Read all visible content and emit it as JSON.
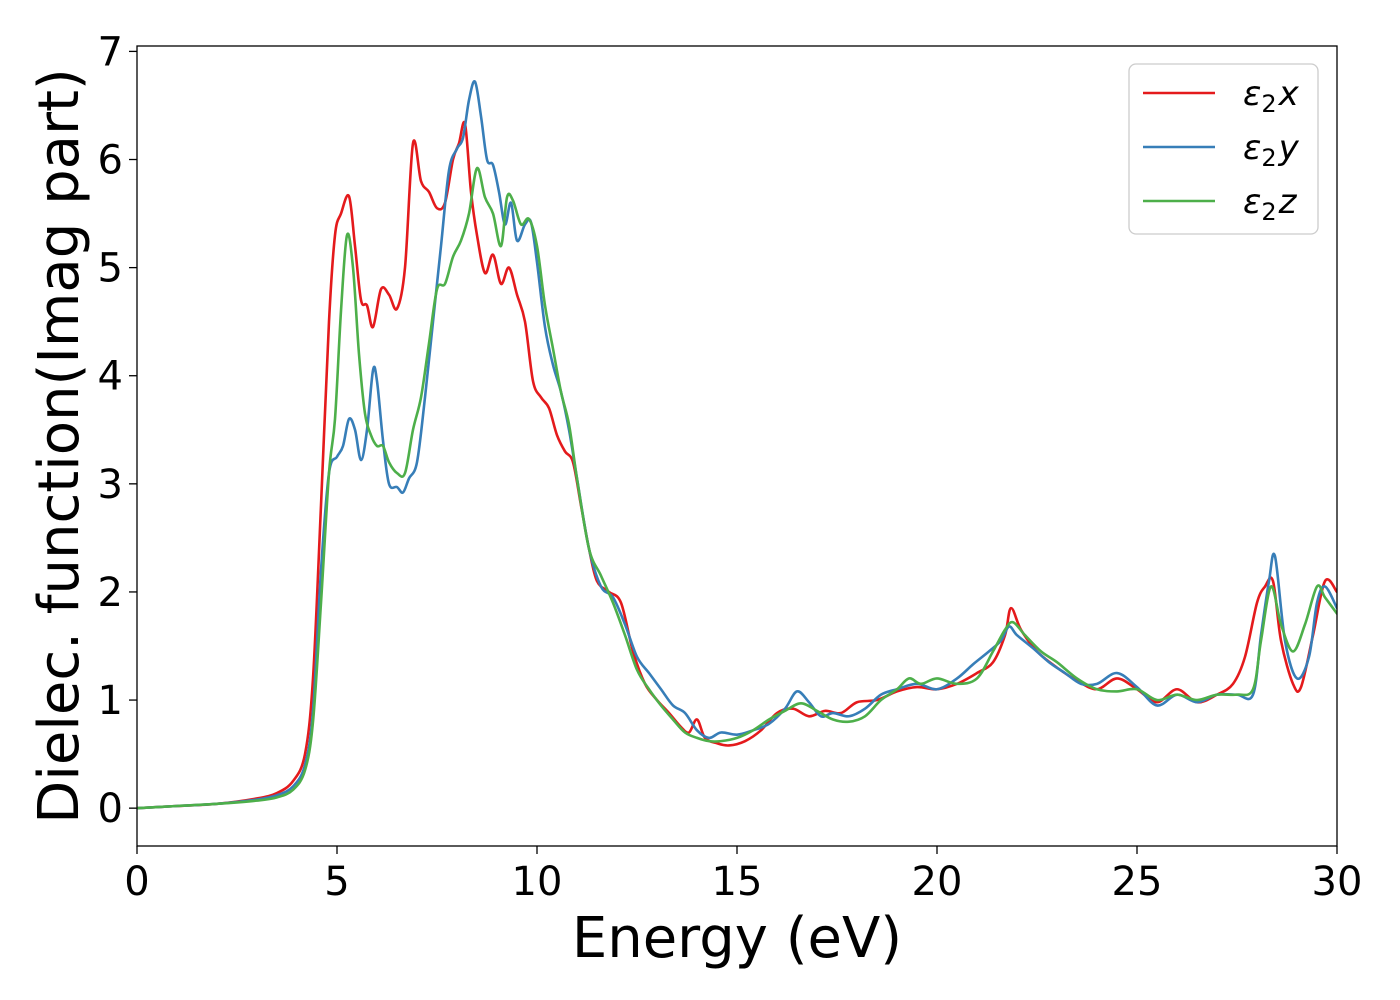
{
  "chart_data": {
    "type": "line",
    "title": "",
    "xlabel": "Energy (eV)",
    "ylabel": "Dielec. function(Imag part)",
    "xlim": [
      0,
      30
    ],
    "ylim": [
      -0.35,
      7.05
    ],
    "xticks": [
      0,
      5,
      10,
      15,
      20,
      25,
      30
    ],
    "yticks": [
      0,
      1,
      2,
      3,
      4,
      5,
      6,
      7
    ],
    "grid": false,
    "legend_position": "top-right",
    "series": [
      {
        "name": "ε2x",
        "legend_base": "ε",
        "legend_sub": "2",
        "legend_suffix": "x",
        "color": "#e41a1c",
        "x": [
          0,
          1,
          2,
          3,
          3.5,
          3.9,
          4.2,
          4.4,
          4.6,
          4.8,
          4.95,
          5.1,
          5.3,
          5.45,
          5.6,
          5.75,
          5.9,
          6.1,
          6.3,
          6.5,
          6.7,
          6.9,
          7.1,
          7.3,
          7.5,
          7.7,
          7.9,
          8.05,
          8.2,
          8.35,
          8.5,
          8.7,
          8.9,
          9.1,
          9.3,
          9.5,
          9.7,
          9.9,
          10.1,
          10.3,
          10.5,
          10.7,
          10.9,
          11.1,
          11.3,
          11.5,
          11.8,
          12.1,
          12.4,
          12.7,
          13.0,
          13.3,
          13.6,
          13.8,
          14.0,
          14.2,
          14.5,
          14.8,
          15.2,
          15.6,
          16.0,
          16.4,
          16.8,
          17.2,
          17.6,
          18.0,
          18.5,
          19.0,
          19.5,
          20.0,
          20.5,
          21.0,
          21.4,
          21.7,
          21.85,
          22.1,
          22.5,
          23.0,
          23.5,
          24.0,
          24.5,
          25.0,
          25.5,
          26.0,
          26.5,
          27.0,
          27.4,
          27.7,
          28.0,
          28.2,
          28.4,
          28.6,
          28.9,
          29.1,
          29.4,
          29.7,
          30.0
        ],
        "y": [
          0,
          0.02,
          0.04,
          0.09,
          0.14,
          0.25,
          0.5,
          1.2,
          2.8,
          4.5,
          5.3,
          5.5,
          5.66,
          5.2,
          4.7,
          4.65,
          4.45,
          4.8,
          4.75,
          4.62,
          5.0,
          6.15,
          5.8,
          5.7,
          5.55,
          5.6,
          6.0,
          6.15,
          6.33,
          5.7,
          5.3,
          4.95,
          5.12,
          4.85,
          5.0,
          4.75,
          4.5,
          3.95,
          3.8,
          3.7,
          3.45,
          3.3,
          3.2,
          2.8,
          2.4,
          2.1,
          2.0,
          1.9,
          1.45,
          1.15,
          1.0,
          0.88,
          0.75,
          0.7,
          0.82,
          0.65,
          0.6,
          0.58,
          0.62,
          0.72,
          0.88,
          0.92,
          0.85,
          0.9,
          0.88,
          0.98,
          1.0,
          1.08,
          1.12,
          1.1,
          1.15,
          1.25,
          1.35,
          1.6,
          1.85,
          1.65,
          1.45,
          1.3,
          1.18,
          1.1,
          1.2,
          1.1,
          0.98,
          1.1,
          0.98,
          1.05,
          1.15,
          1.4,
          1.9,
          2.05,
          2.1,
          1.55,
          1.15,
          1.12,
          1.6,
          2.1,
          2.0
        ]
      },
      {
        "name": "ε2y",
        "legend_base": "ε",
        "legend_sub": "2",
        "legend_suffix": "y",
        "color": "#377eb8",
        "x": [
          0,
          1,
          2,
          3,
          3.5,
          3.9,
          4.2,
          4.4,
          4.6,
          4.8,
          5.0,
          5.15,
          5.3,
          5.45,
          5.6,
          5.75,
          5.9,
          6.0,
          6.15,
          6.3,
          6.5,
          6.65,
          6.8,
          7.0,
          7.2,
          7.4,
          7.6,
          7.8,
          8.0,
          8.15,
          8.3,
          8.45,
          8.6,
          8.75,
          8.9,
          9.05,
          9.2,
          9.35,
          9.5,
          9.7,
          9.85,
          10.0,
          10.2,
          10.4,
          10.6,
          10.8,
          11.0,
          11.3,
          11.6,
          11.9,
          12.2,
          12.5,
          12.8,
          13.1,
          13.4,
          13.7,
          14.0,
          14.3,
          14.6,
          15.0,
          15.4,
          15.8,
          16.2,
          16.5,
          16.8,
          17.1,
          17.4,
          17.8,
          18.2,
          18.6,
          19.0,
          19.5,
          20.0,
          20.5,
          20.9,
          21.3,
          21.6,
          21.8,
          22.0,
          22.4,
          22.8,
          23.2,
          23.6,
          24.0,
          24.5,
          25.0,
          25.5,
          26.0,
          26.5,
          27.0,
          27.5,
          27.9,
          28.1,
          28.3,
          28.45,
          28.7,
          29.0,
          29.3,
          29.5,
          29.7,
          30.0
        ],
        "y": [
          0,
          0.02,
          0.04,
          0.08,
          0.12,
          0.2,
          0.4,
          0.9,
          2.2,
          3.1,
          3.25,
          3.35,
          3.6,
          3.5,
          3.22,
          3.5,
          4.05,
          3.95,
          3.4,
          3.0,
          2.97,
          2.92,
          3.05,
          3.2,
          3.8,
          4.5,
          5.2,
          5.9,
          6.1,
          6.2,
          6.55,
          6.72,
          6.4,
          6.0,
          5.95,
          5.7,
          5.4,
          5.6,
          5.25,
          5.4,
          5.42,
          5.05,
          4.45,
          4.1,
          3.85,
          3.5,
          3.05,
          2.4,
          2.05,
          1.95,
          1.7,
          1.4,
          1.25,
          1.1,
          0.95,
          0.88,
          0.72,
          0.65,
          0.7,
          0.68,
          0.72,
          0.78,
          0.92,
          1.08,
          0.98,
          0.85,
          0.88,
          0.85,
          0.92,
          1.05,
          1.1,
          1.15,
          1.1,
          1.2,
          1.33,
          1.45,
          1.55,
          1.68,
          1.6,
          1.48,
          1.35,
          1.25,
          1.15,
          1.15,
          1.25,
          1.12,
          0.95,
          1.05,
          0.98,
          1.05,
          1.05,
          1.05,
          1.6,
          2.1,
          2.33,
          1.55,
          1.2,
          1.4,
          1.9,
          2.05,
          1.85
        ]
      },
      {
        "name": "ε2z",
        "legend_base": "ε",
        "legend_sub": "2",
        "legend_suffix": "z",
        "color": "#4daf4a",
        "x": [
          0,
          1,
          2,
          3,
          3.5,
          3.9,
          4.2,
          4.4,
          4.6,
          4.8,
          4.95,
          5.1,
          5.25,
          5.4,
          5.55,
          5.7,
          5.85,
          6.0,
          6.15,
          6.3,
          6.5,
          6.7,
          6.9,
          7.1,
          7.3,
          7.5,
          7.7,
          7.9,
          8.1,
          8.3,
          8.5,
          8.7,
          8.9,
          9.1,
          9.25,
          9.4,
          9.6,
          9.8,
          10.0,
          10.2,
          10.4,
          10.6,
          10.8,
          11.0,
          11.3,
          11.6,
          11.9,
          12.2,
          12.5,
          12.8,
          13.1,
          13.4,
          13.7,
          14.0,
          14.3,
          14.6,
          15.0,
          15.4,
          15.8,
          16.2,
          16.6,
          17.0,
          17.4,
          17.8,
          18.2,
          18.6,
          19.0,
          19.3,
          19.6,
          20.0,
          20.5,
          21.0,
          21.4,
          21.7,
          21.9,
          22.2,
          22.6,
          23.0,
          23.5,
          24.0,
          24.5,
          25.0,
          25.5,
          26.0,
          26.5,
          27.0,
          27.5,
          27.9,
          28.1,
          28.35,
          28.6,
          28.9,
          29.2,
          29.5,
          29.7,
          30.0
        ],
        "y": [
          0,
          0.02,
          0.04,
          0.07,
          0.1,
          0.17,
          0.35,
          0.8,
          1.9,
          3.1,
          3.6,
          4.6,
          5.3,
          5.0,
          4.2,
          3.65,
          3.45,
          3.35,
          3.35,
          3.2,
          3.1,
          3.1,
          3.5,
          3.8,
          4.3,
          4.8,
          4.85,
          5.1,
          5.25,
          5.5,
          5.92,
          5.65,
          5.5,
          5.2,
          5.65,
          5.62,
          5.4,
          5.45,
          5.2,
          4.65,
          4.25,
          3.85,
          3.55,
          3.05,
          2.4,
          2.15,
          1.9,
          1.6,
          1.28,
          1.1,
          0.95,
          0.82,
          0.7,
          0.65,
          0.62,
          0.62,
          0.65,
          0.72,
          0.82,
          0.9,
          0.97,
          0.9,
          0.82,
          0.8,
          0.85,
          1.0,
          1.1,
          1.2,
          1.15,
          1.2,
          1.15,
          1.2,
          1.45,
          1.65,
          1.72,
          1.6,
          1.45,
          1.35,
          1.2,
          1.1,
          1.08,
          1.1,
          1.0,
          1.05,
          1.0,
          1.05,
          1.05,
          1.1,
          1.55,
          2.05,
          1.7,
          1.45,
          1.7,
          2.05,
          1.95,
          1.8
        ]
      }
    ]
  }
}
